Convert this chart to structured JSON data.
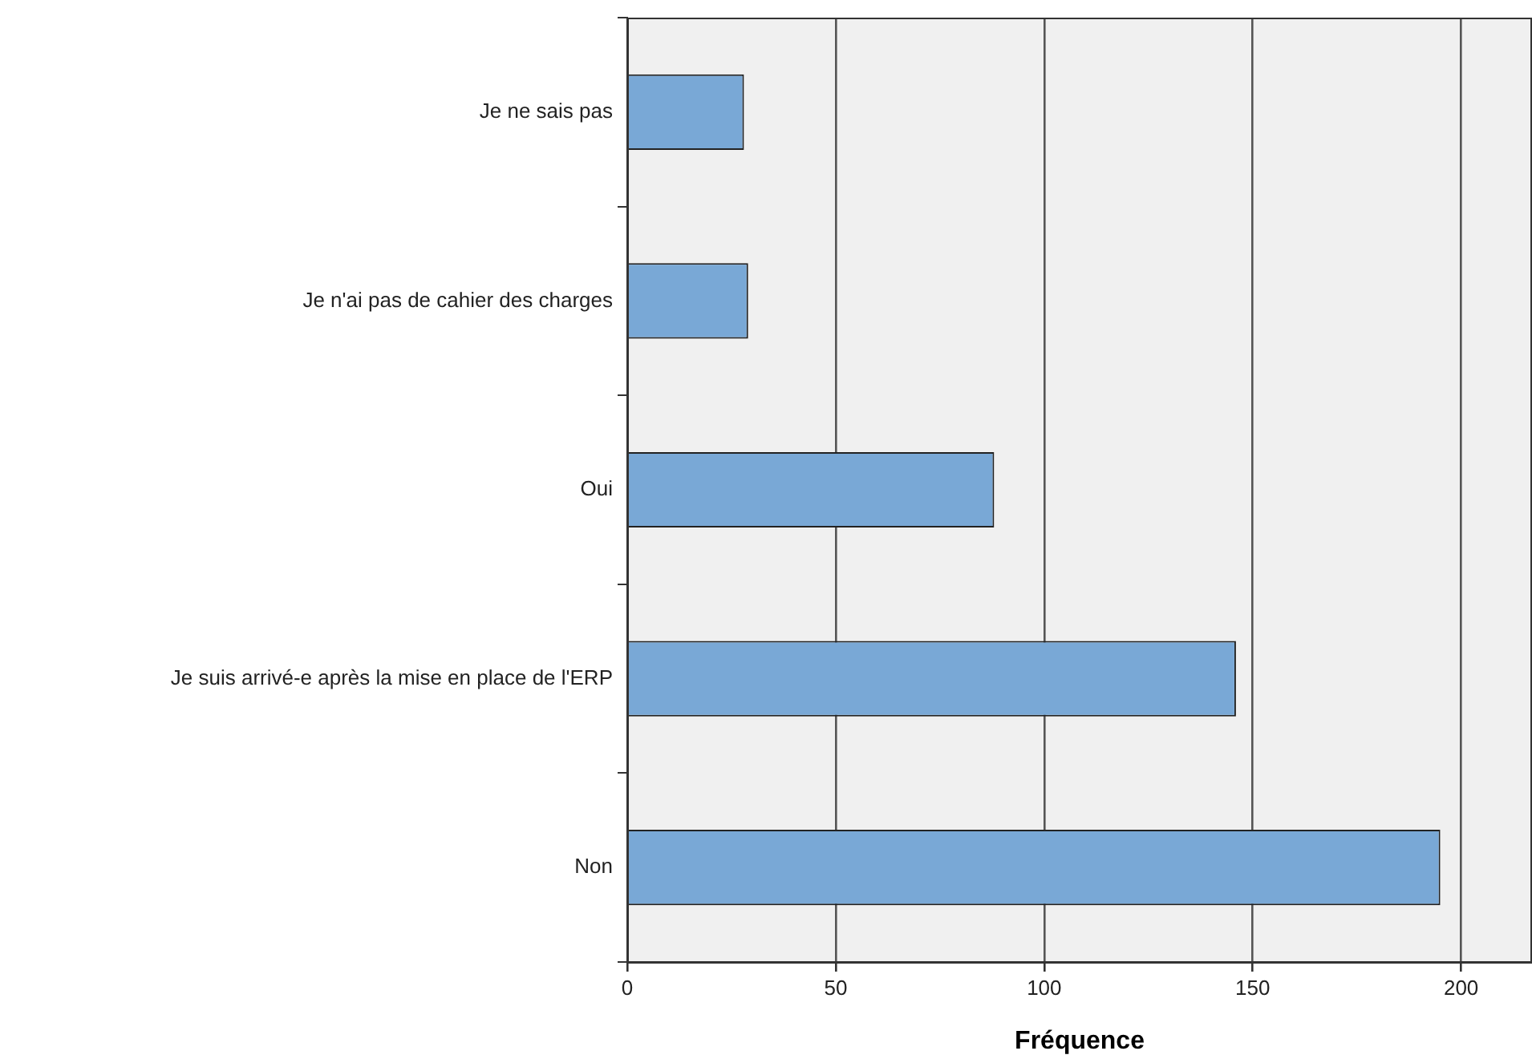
{
  "chart_data": {
    "type": "bar",
    "orientation": "horizontal",
    "xlabel": "Fréquence",
    "categories": [
      "Je ne sais pas",
      "Je n'ai pas de cahier des charges",
      "Oui",
      "Je suis arrivé-e après la mise en place de l'ERP",
      "Non"
    ],
    "values": [
      28,
      29,
      88,
      146,
      195
    ],
    "color": "#79a8d6",
    "xlim": [
      0,
      217
    ],
    "xticks": [
      0,
      50,
      100,
      150,
      200
    ],
    "grid": "x",
    "legend": false
  }
}
